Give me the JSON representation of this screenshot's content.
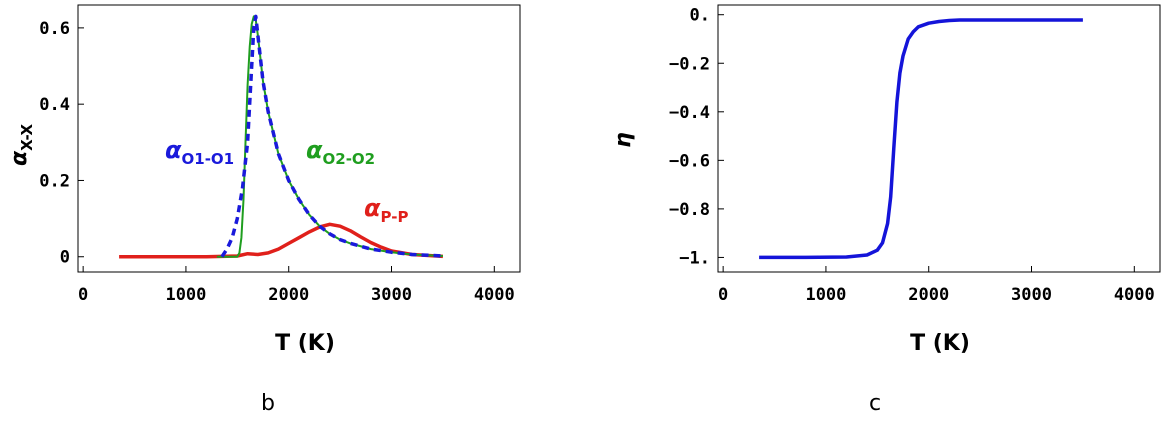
{
  "panels": [
    {
      "id": "b",
      "sublabel": "b",
      "xlabel": "T (K)",
      "ylabel": "αX-X",
      "chart_data": {
        "type": "line",
        "xlim": [
          -50,
          4250
        ],
        "ylim": [
          -0.04,
          0.66
        ],
        "x_ticks": [
          0,
          1000,
          2000,
          3000,
          4000
        ],
        "x_tick_labels": [
          "0",
          "1000",
          "2000",
          "3000",
          "4000"
        ],
        "y_ticks": [
          0,
          0.2,
          0.4,
          0.6
        ],
        "y_tick_labels": [
          "0",
          "0.2",
          "0.4",
          "0.6"
        ],
        "grid": false,
        "series": [
          {
            "name": "αO1-O1",
            "color": "#1a1adb",
            "style": "dashed",
            "x": [
              1350,
              1400,
              1450,
              1500,
              1550,
              1600,
              1640,
              1660,
              1680,
              1700,
              1750,
              1800,
              1900,
              2000,
              2100,
              2200,
              2300,
              2400,
              2500,
              2600,
              2800,
              3000,
              3200,
              3500
            ],
            "y": [
              0.0,
              0.02,
              0.05,
              0.1,
              0.18,
              0.3,
              0.5,
              0.6,
              0.63,
              0.58,
              0.46,
              0.38,
              0.27,
              0.2,
              0.15,
              0.11,
              0.08,
              0.06,
              0.045,
              0.035,
              0.02,
              0.012,
              0.006,
              0.002
            ]
          },
          {
            "name": "αO2-O2",
            "color": "#1f9e1f",
            "style": "solid",
            "x": [
              1300,
              1500,
              1520,
              1540,
              1560,
              1580,
              1600,
              1620,
              1640,
              1660,
              1680,
              1700,
              1750,
              1800,
              1900,
              2000,
              2100,
              2200,
              2300,
              2400,
              2500,
              2600,
              2800,
              3000,
              3200,
              3500
            ],
            "y": [
              0.0,
              0.0,
              0.01,
              0.05,
              0.15,
              0.3,
              0.45,
              0.55,
              0.61,
              0.63,
              0.62,
              0.58,
              0.46,
              0.38,
              0.27,
              0.2,
              0.15,
              0.11,
              0.08,
              0.06,
              0.045,
              0.035,
              0.02,
              0.012,
              0.006,
              0.002
            ]
          },
          {
            "name": "αP-P",
            "color": "#e0201b",
            "style": "solid",
            "x": [
              350,
              800,
              1200,
              1500,
              1600,
              1700,
              1800,
              1900,
              2000,
              2100,
              2200,
              2300,
              2400,
              2500,
              2600,
              2700,
              2800,
              2900,
              3000,
              3200,
              3500
            ],
            "y": [
              0.0,
              0.0,
              0.0,
              0.002,
              0.008,
              0.006,
              0.01,
              0.02,
              0.035,
              0.05,
              0.065,
              0.078,
              0.085,
              0.08,
              0.068,
              0.052,
              0.037,
              0.025,
              0.015,
              0.006,
              0.001
            ]
          }
        ],
        "annotations": [
          {
            "text_main": "α",
            "text_sub": "O1-O1",
            "series": 0
          },
          {
            "text_main": "α",
            "text_sub": "O2-O2",
            "series": 1
          },
          {
            "text_main": "α",
            "text_sub": "P-P",
            "series": 2
          }
        ]
      }
    },
    {
      "id": "c",
      "sublabel": "c",
      "xlabel": "T (K)",
      "ylabel": "η",
      "chart_data": {
        "type": "line",
        "xlim": [
          -50,
          4250
        ],
        "ylim": [
          -1.06,
          0.04
        ],
        "x_ticks": [
          0,
          1000,
          2000,
          3000,
          4000
        ],
        "x_tick_labels": [
          "0",
          "1000",
          "2000",
          "3000",
          "4000"
        ],
        "y_ticks": [
          -1.0,
          -0.8,
          -0.6,
          -0.4,
          -0.2,
          0.0
        ],
        "y_tick_labels": [
          "-1.",
          "-0.8",
          "-0.6",
          "-0.4",
          "-0.2",
          "0."
        ],
        "grid": false,
        "series": [
          {
            "name": "η",
            "color": "#1414d9",
            "style": "solid",
            "x": [
              350,
              800,
              1200,
              1400,
              1500,
              1550,
              1600,
              1630,
              1660,
              1690,
              1720,
              1750,
              1800,
              1850,
              1900,
              2000,
              2100,
              2200,
              2300,
              2500,
              3000,
              3500
            ],
            "y": [
              -1.0,
              -1.0,
              -0.998,
              -0.99,
              -0.97,
              -0.94,
              -0.86,
              -0.75,
              -0.55,
              -0.36,
              -0.24,
              -0.17,
              -0.1,
              -0.07,
              -0.05,
              -0.035,
              -0.028,
              -0.024,
              -0.022,
              -0.022,
              -0.022,
              -0.022
            ]
          }
        ]
      }
    }
  ]
}
